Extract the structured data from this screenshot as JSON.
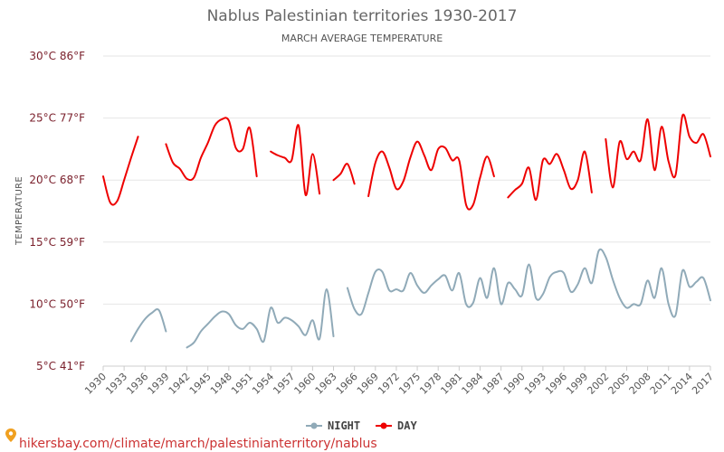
{
  "colors": {
    "day": "#ee0000",
    "night": "#90aab8",
    "grid": "#e6e6e6",
    "tick_label": "#7a1f2b",
    "source": "#cc3333"
  },
  "source_text": "hikersbay.com/climate/march/palestinianterritory/nablus",
  "source_icon": "location-pin-icon",
  "chart_data": {
    "type": "line",
    "title": "Nablus Palestinian territories 1930-2017",
    "subtitle": "MARCH AVERAGE TEMPERATURE",
    "ylabel": "TEMPERATURE",
    "xlabel": "",
    "ylim": [
      5,
      30
    ],
    "xlim": [
      1930,
      2017
    ],
    "yticks": [
      {
        "value": 5,
        "label": "5°C 41°F"
      },
      {
        "value": 10,
        "label": "10°C 50°F"
      },
      {
        "value": 15,
        "label": "15°C 59°F"
      },
      {
        "value": 20,
        "label": "20°C 68°F"
      },
      {
        "value": 25,
        "label": "25°C 77°F"
      },
      {
        "value": 30,
        "label": "30°C 86°F"
      }
    ],
    "xticks": [
      1930,
      1933,
      1936,
      1939,
      1942,
      1945,
      1948,
      1951,
      1954,
      1957,
      1960,
      1963,
      1966,
      1969,
      1972,
      1975,
      1978,
      1981,
      1984,
      1987,
      1990,
      1993,
      1996,
      1999,
      2002,
      2005,
      2008,
      2011,
      2014,
      2017
    ],
    "grid": "horizontal",
    "legend_position": "bottom",
    "series": [
      {
        "name": "NIGHT",
        "color": "#90aab8",
        "x": [
          1934,
          1935,
          1936,
          1937,
          1938,
          1939,
          1942,
          1943,
          1944,
          1945,
          1946,
          1947,
          1948,
          1949,
          1950,
          1951,
          1952,
          1953,
          1954,
          1955,
          1956,
          1957,
          1958,
          1959,
          1960,
          1961,
          1962,
          1963,
          1965,
          1966,
          1967,
          1968,
          1969,
          1970,
          1971,
          1972,
          1973,
          1974,
          1975,
          1976,
          1977,
          1978,
          1979,
          1980,
          1981,
          1982,
          1983,
          1984,
          1985,
          1986,
          1987,
          1988,
          1989,
          1990,
          1991,
          1992,
          1993,
          1994,
          1995,
          1996,
          1997,
          1998,
          1999,
          2000,
          2001,
          2002,
          2003,
          2004,
          2005,
          2006,
          2007,
          2008,
          2009,
          2010,
          2011,
          2012,
          2013,
          2014,
          2015,
          2016,
          2017
        ],
        "values": [
          7.0,
          8.0,
          8.8,
          9.3,
          9.5,
          7.8,
          6.5,
          6.9,
          7.8,
          8.4,
          9.0,
          9.4,
          9.2,
          8.3,
          8.0,
          8.5,
          8.0,
          7.0,
          9.7,
          8.5,
          8.9,
          8.7,
          8.2,
          7.5,
          8.7,
          7.2,
          11.2,
          7.4,
          11.3,
          9.6,
          9.2,
          10.9,
          12.6,
          12.6,
          11.1,
          11.2,
          11.1,
          12.5,
          11.5,
          10.9,
          11.5,
          12.0,
          12.3,
          11.1,
          12.5,
          10.0,
          10.1,
          12.1,
          10.5,
          12.9,
          10.0,
          11.7,
          11.2,
          10.7,
          13.2,
          10.5,
          10.8,
          12.2,
          12.6,
          12.5,
          11.0,
          11.6,
          12.9,
          11.7,
          14.3,
          13.8,
          12.0,
          10.5,
          9.7,
          10.0,
          10.0,
          11.9,
          10.5,
          12.9,
          10.0,
          9.1,
          12.7,
          11.4,
          11.8,
          12.1,
          10.3
        ],
        "breaks_after": [
          1939,
          1963
        ]
      },
      {
        "name": "DAY",
        "color": "#ee0000",
        "x": [
          1930,
          1931,
          1932,
          1933,
          1934,
          1935,
          1936,
          1939,
          1940,
          1941,
          1942,
          1943,
          1944,
          1945,
          1946,
          1947,
          1948,
          1949,
          1950,
          1951,
          1952,
          1954,
          1955,
          1956,
          1957,
          1958,
          1959,
          1960,
          1961,
          1963,
          1964,
          1965,
          1966,
          1968,
          1969,
          1970,
          1971,
          1972,
          1973,
          1974,
          1975,
          1976,
          1977,
          1978,
          1979,
          1980,
          1981,
          1982,
          1983,
          1984,
          1985,
          1986,
          1988,
          1989,
          1990,
          1991,
          1992,
          1993,
          1994,
          1995,
          1996,
          1997,
          1998,
          1999,
          2000,
          2002,
          2003,
          2004,
          2005,
          2006,
          2007,
          2008,
          2009,
          2010,
          2011,
          2012,
          2013,
          2014,
          2015,
          2016,
          2017
        ],
        "values": [
          20.3,
          18.2,
          18.3,
          20.0,
          21.8,
          23.5,
          null,
          22.9,
          21.4,
          20.9,
          20.1,
          20.2,
          21.8,
          23.0,
          24.4,
          24.9,
          24.8,
          22.6,
          22.5,
          24.2,
          20.3,
          22.3,
          22.0,
          21.8,
          21.6,
          24.4,
          18.8,
          22.1,
          18.9,
          20.0,
          20.5,
          21.3,
          19.7,
          18.7,
          21.4,
          22.3,
          21.0,
          19.3,
          19.9,
          21.8,
          23.1,
          22.0,
          20.8,
          22.5,
          22.6,
          21.6,
          21.6,
          18.0,
          18.0,
          20.2,
          21.9,
          20.3,
          18.6,
          19.2,
          19.7,
          21.0,
          18.4,
          21.6,
          21.3,
          22.1,
          20.8,
          19.3,
          20.0,
          22.3,
          19.0,
          23.3,
          19.4,
          23.1,
          21.7,
          22.3,
          21.6,
          24.9,
          20.8,
          24.3,
          21.5,
          20.4,
          25.2,
          23.5,
          23.0,
          23.7,
          21.9
        ],
        "breaks_after": [
          1936,
          1952,
          1961,
          1966,
          1986,
          2000
        ]
      }
    ]
  }
}
